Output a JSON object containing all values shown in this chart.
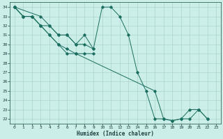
{
  "xlabel": "Humidex (Indice chaleur)",
  "background_color": "#cceee8",
  "grid_color": "#aad4cc",
  "line_color": "#1a6e60",
  "xlim": [
    -0.5,
    23.5
  ],
  "ylim": [
    21.5,
    34.5
  ],
  "yticks": [
    22,
    23,
    24,
    25,
    26,
    27,
    28,
    29,
    30,
    31,
    32,
    33,
    34
  ],
  "xticks": [
    0,
    1,
    2,
    3,
    4,
    5,
    6,
    7,
    8,
    9,
    10,
    11,
    12,
    13,
    14,
    15,
    16,
    17,
    18,
    19,
    20,
    21,
    22,
    23
  ],
  "series": [
    {
      "x": [
        0,
        1,
        2,
        3,
        4,
        5,
        6,
        7,
        8,
        9,
        10,
        11,
        12,
        13,
        14,
        15,
        16,
        17,
        18,
        19,
        20,
        21,
        22
      ],
      "y": [
        34,
        33,
        33,
        32,
        32,
        31,
        31,
        30,
        31,
        29.5,
        34,
        34,
        33,
        31,
        27,
        25,
        22,
        22,
        21.8,
        22,
        23,
        23,
        22
      ]
    },
    {
      "x": [
        0,
        1,
        2,
        3,
        4,
        5,
        6,
        7,
        8,
        9
      ],
      "y": [
        34,
        33,
        33,
        32,
        31,
        30,
        29,
        29,
        29,
        29
      ]
    },
    {
      "x": [
        0,
        1,
        2,
        3,
        4,
        5,
        6,
        7,
        16,
        17,
        18,
        19,
        20,
        21,
        22
      ],
      "y": [
        34,
        33,
        33,
        32,
        31,
        30,
        29.5,
        29,
        25,
        22,
        21.8,
        22,
        22,
        23,
        22
      ]
    },
    {
      "x": [
        0,
        3,
        4,
        5,
        6,
        7,
        8,
        9
      ],
      "y": [
        34,
        33,
        32,
        31,
        31,
        30,
        30,
        29.5
      ]
    }
  ]
}
